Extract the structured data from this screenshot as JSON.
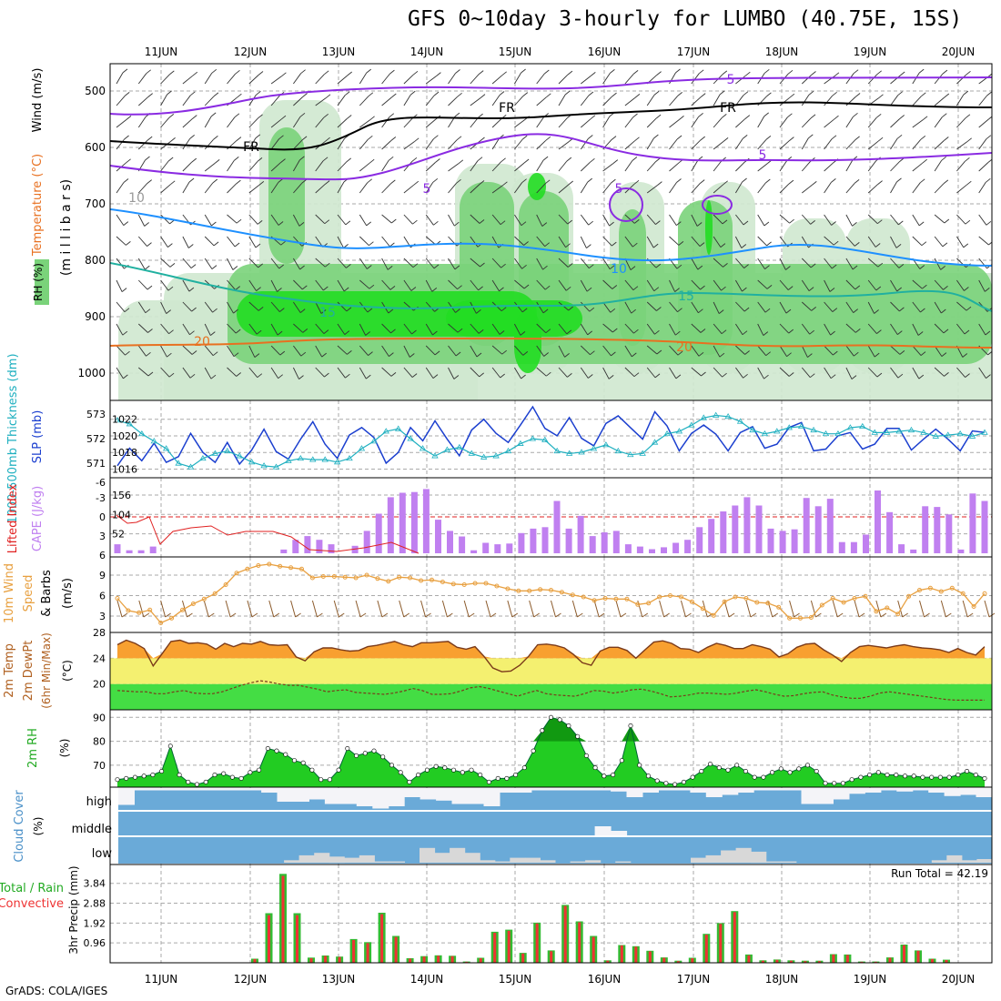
{
  "title": "GFS 0~10day 3-hourly for LUMBO (40.75E, 15S)",
  "credit": "GrADS: COLA/IGES",
  "days": [
    "11JUN",
    "12JUN",
    "13JUN",
    "14JUN",
    "15JUN",
    "16JUN",
    "17JUN",
    "18JUN",
    "19JUN",
    "20JUN"
  ],
  "colors": {
    "grid": "#aaaaaa",
    "purple": "#8a2be2",
    "orange": "#e87020",
    "teal": "#20b0a0",
    "blue": "#1e90ff",
    "green_light": "#cfe8cf",
    "green_mid": "#7ad37a",
    "green_bright": "#22dd22",
    "slp_line": "#1b3fcf",
    "thk_line": "#20b0c0",
    "cape_bar": "#c080f0",
    "li_line": "#e02020",
    "wind_line": "#e8a040",
    "barb": "#8b5a2b",
    "t_fill": "#f8a030",
    "band_yellow": "#f4f070",
    "band_green": "#44dd44",
    "rh_fill": "#22cc22",
    "rh_dark": "#119911",
    "cloud_blue": "#6aaad8",
    "cloud_white": "#f4f4f8",
    "cloud_grey": "#d8d8d8",
    "precip_green": "#33bb33",
    "precip_red": "#ee3333"
  },
  "panels": {
    "upper": {
      "label_rh": "RH (%)",
      "label_temp": "Temperature (°C)",
      "label_wind": "Wind (m/s)",
      "label_mb": "(m i l l i b a r s)",
      "ticks": [
        "500",
        "600",
        "700",
        "800",
        "900",
        "1000"
      ],
      "contour_labels": [
        "FR",
        "FR",
        "FR",
        "5",
        "5",
        "5",
        "5",
        "10",
        "15",
        "15",
        "20",
        "20",
        "10"
      ]
    },
    "slp": {
      "label_thk": "1000-500mb Thickness (dm)",
      "label_slp": "SLP (mb)",
      "ticks_left": [
        "573",
        "572",
        "571"
      ],
      "ticks_right": [
        "1022",
        "1020",
        "1018",
        "1016"
      ]
    },
    "cape": {
      "label_li": "Lifted Index",
      "label_cape": "CAPE (J/kg)",
      "ticks_left": [
        "-6",
        "-3",
        "0",
        "3",
        "6"
      ],
      "ticks_right": [
        "156",
        "104",
        "52"
      ]
    },
    "wind": {
      "label_a": "10m Wind",
      "label_b": "Speed",
      "label_c": "& Barbs",
      "label_units": "(m/s)",
      "ticks": [
        "9",
        "6",
        "3"
      ]
    },
    "temp": {
      "label_a": "2m Temp",
      "label_b": "2m DewPt",
      "label_c": "(6hr Min/Max)",
      "label_units": "(°C)",
      "ticks": [
        "28",
        "24",
        "20"
      ]
    },
    "rh": {
      "label": "2m RH",
      "label_units": "(%)",
      "ticks": [
        "90",
        "80",
        "70"
      ]
    },
    "cloud": {
      "label": "Cloud Cover",
      "label_units": "(%)",
      "levels": [
        "high",
        "middle",
        "low"
      ]
    },
    "precip": {
      "label_a": "Total / Rain",
      "label_b": "Convective",
      "label_c": "3hr Precip (mm)",
      "run_total": "Run Total = 42.19",
      "ticks": [
        "3.84",
        "2.88",
        "1.92",
        "0.96"
      ]
    }
  },
  "chart_data": [
    {
      "type": "line",
      "title": "1000-500mb Thickness (dm) / SLP (mb)",
      "series": [
        {
          "name": "SLP (mb)",
          "values": [
            1016.4,
            1018.5,
            1017.0,
            1019.1,
            1016.8,
            1017.5,
            1020.3,
            1018.0,
            1016.8,
            1019.2,
            1016.6,
            1018.3,
            1020.8,
            1018.1,
            1017.2,
            1019.6,
            1021.7,
            1019.0,
            1017.3,
            1020.1,
            1021.0,
            1019.8,
            1016.7,
            1018.0,
            1021.0,
            1019.4,
            1021.8,
            1019.6,
            1017.6,
            1020.7,
            1022.0,
            1020.3,
            1019.2,
            1021.3,
            1023.5,
            1020.9,
            1020.0,
            1022.2,
            1019.7,
            1018.8,
            1021.5,
            1022.4,
            1021.0,
            1019.6,
            1022.9,
            1021.2,
            1018.2,
            1020.3,
            1021.3,
            1020.2,
            1018.2,
            1020.4,
            1021.1,
            1018.5,
            1019.0,
            1021.0,
            1021.6,
            1018.2,
            1018.4,
            1020.0,
            1020.4,
            1018.4,
            1019.0,
            1020.9,
            1020.9,
            1018.3,
            1019.6,
            1020.8,
            1019.6,
            1018.2,
            1020.6,
            1020.4
          ]
        },
        {
          "name": "Thickness (dm)",
          "values": [
            572.75,
            572.6,
            572.2,
            571.9,
            571.6,
            571.0,
            570.85,
            571.2,
            571.4,
            571.5,
            571.3,
            571.05,
            570.9,
            570.85,
            571.1,
            571.2,
            571.15,
            571.15,
            571.05,
            571.2,
            571.6,
            571.9,
            572.3,
            572.4,
            572.0,
            571.6,
            571.3,
            571.55,
            571.65,
            571.4,
            571.25,
            571.3,
            571.5,
            571.8,
            572.0,
            571.95,
            571.5,
            571.4,
            571.45,
            571.6,
            571.75,
            571.5,
            571.35,
            571.4,
            571.85,
            572.2,
            572.3,
            572.55,
            572.85,
            572.95,
            572.9,
            572.7,
            572.35,
            572.2,
            572.3,
            572.45,
            572.5,
            572.35,
            572.2,
            572.2,
            572.45,
            572.5,
            572.25,
            572.25,
            572.3,
            572.35,
            572.25,
            572.1,
            572.15,
            572.2,
            572.1,
            572.25
          ]
        }
      ],
      "ylim_slp": [
        1015.5,
        1023.5
      ],
      "ylim_thickness": [
        570.6,
        573.3
      ]
    },
    {
      "type": "bar",
      "title": "CAPE (J/kg) / Lifted Index",
      "series": [
        {
          "name": "CAPE (J/kg)",
          "values": [
            24,
            8,
            8,
            18,
            0,
            0,
            0,
            0,
            0,
            0,
            0,
            0,
            0,
            0,
            10,
            36,
            46,
            36,
            24,
            0,
            20,
            60,
            106,
            150,
            162,
            164,
            172,
            90,
            60,
            45,
            8,
            28,
            24,
            26,
            54,
            66,
            70,
            140,
            66,
            100,
            46,
            56,
            60,
            24,
            18,
            11,
            16,
            28,
            36,
            70,
            92,
            112,
            128,
            150,
            128,
            66,
            60,
            64,
            148,
            126,
            146,
            30,
            30,
            50,
            168,
            110,
            24,
            10,
            126,
            124,
            104,
            10,
            160,
            140
          ],
          "note_hidden": false
        }
      ]
    },
    {
      "type": "line",
      "title": "10m Wind Speed (m/s)",
      "series": [
        {
          "name": "Speed",
          "values": [
            5.6,
            3.8,
            3.5,
            3.9,
            2.0,
            2.7,
            3.9,
            4.8,
            5.5,
            6.3,
            7.6,
            9.3,
            9.9,
            10.4,
            10.6,
            10.3,
            10.1,
            9.9,
            8.6,
            8.8,
            8.8,
            8.7,
            8.6,
            9.0,
            8.5,
            8.1,
            8.7,
            8.6,
            8.2,
            8.3,
            8.0,
            7.7,
            7.6,
            7.8,
            7.8,
            7.4,
            7.0,
            6.7,
            6.7,
            6.9,
            6.8,
            6.5,
            6.1,
            5.8,
            5.3,
            5.6,
            5.5,
            5.5,
            4.7,
            4.9,
            5.8,
            6.0,
            5.8,
            5.1,
            4.1,
            3.1,
            5.1,
            5.8,
            5.6,
            5.0,
            4.9,
            4.3,
            2.7,
            2.7,
            2.8,
            4.6,
            5.6,
            5.0,
            5.6,
            5.9,
            3.7,
            4.2,
            3.3,
            5.9,
            6.8,
            7.1,
            6.6,
            7.1,
            6.3,
            4.4,
            6.3
          ]
        }
      ],
      "ylim": [
        1,
        11
      ]
    },
    {
      "type": "area",
      "title": "2m Temp / 2m DewPt (°C)",
      "series": [
        {
          "name": "2m Temp",
          "values": [
            26.1,
            26.8,
            26.3,
            25.5,
            22.8,
            24.7,
            26.6,
            26.8,
            26.3,
            26.4,
            26.2,
            25.4,
            26.3,
            25.8,
            26.3,
            26.2,
            26.6,
            26.1,
            26.0,
            26.1,
            24.2,
            23.6,
            25.0,
            25.6,
            25.6,
            25.3,
            25.1,
            25.2,
            25.8,
            26.0,
            26.3,
            26.6,
            26.1,
            25.8,
            26.4,
            26.4,
            26.5,
            26.6,
            25.7,
            25.4,
            25.8,
            24.3,
            22.5,
            21.9,
            22.0,
            22.9,
            24.3,
            26.1,
            26.2,
            26.0,
            25.6,
            24.6,
            23.3,
            22.9,
            25.1,
            25.7,
            25.7,
            25.2,
            24.0,
            25.3,
            26.5,
            26.7,
            26.3,
            25.5,
            25.4,
            24.9,
            25.7,
            26.3,
            26.0,
            25.5,
            25.5,
            26.1,
            25.8,
            25.4,
            24.2,
            24.7,
            25.7,
            26.2,
            26.3,
            25.3,
            24.5,
            23.5,
            24.9,
            25.8,
            26.0,
            25.8,
            25.6,
            25.9,
            26.1,
            25.8,
            25.6,
            25.5,
            25.3,
            24.9,
            25.5,
            24.9,
            24.5,
            25.8
          ]
        },
        {
          "name": "2m DewPt",
          "values": [
            19.0,
            18.9,
            18.8,
            18.8,
            18.5,
            18.5,
            18.8,
            19.0,
            18.6,
            18.5,
            18.5,
            18.8,
            19.3,
            19.8,
            20.2,
            20.5,
            20.3,
            20.0,
            19.8,
            19.8,
            19.5,
            19.2,
            18.8,
            19.0,
            19.1,
            18.7,
            18.6,
            18.5,
            18.4,
            18.6,
            18.9,
            19.3,
            19.0,
            18.4,
            18.4,
            18.5,
            18.9,
            19.4,
            19.6,
            19.3,
            18.9,
            18.5,
            18.1,
            18.6,
            19.0,
            18.5,
            18.3,
            18.2,
            18.1,
            18.5,
            19.0,
            18.9,
            18.6,
            18.8,
            19.1,
            19.2,
            18.9,
            18.5,
            18.0,
            18.1,
            18.3,
            18.6,
            18.6,
            18.5,
            18.4,
            18.6,
            18.9,
            19.1,
            18.8,
            18.4,
            18.1,
            18.2,
            18.5,
            18.7,
            18.8,
            18.3,
            18.0,
            17.8,
            17.8,
            18.1,
            18.6,
            18.8,
            18.6,
            18.4,
            18.2,
            18.0,
            17.8,
            17.6,
            17.5,
            17.5,
            17.5,
            17.5
          ]
        }
      ],
      "ylim": [
        16,
        28
      ]
    },
    {
      "type": "area",
      "title": "2m RH (%)",
      "series": [
        {
          "name": "2m RH",
          "values": [
            64,
            64.5,
            65,
            65.5,
            66,
            67.5,
            78,
            66,
            63,
            62,
            63,
            66,
            66.5,
            65,
            64.5,
            67,
            68,
            77,
            76,
            74.5,
            72,
            71,
            68,
            64,
            64,
            68,
            77,
            74,
            75,
            76,
            73.5,
            70,
            67,
            63,
            66,
            68,
            69.5,
            69,
            68,
            67,
            68,
            66,
            63,
            64.5,
            64.5,
            66,
            69,
            76,
            84.5,
            90,
            89,
            86.5,
            82,
            74,
            69,
            65.5,
            66,
            72,
            86.5,
            70,
            65.5,
            63.5,
            62.5,
            62,
            63,
            65,
            67.5,
            70.5,
            69,
            68,
            70,
            67.5,
            65,
            65,
            67,
            68.5,
            67,
            68.5,
            70,
            67.5,
            62.5,
            62.5,
            62.5,
            64,
            65,
            66,
            67,
            66,
            66,
            65.5,
            65.5,
            65,
            65,
            65,
            65,
            66,
            67.5,
            66,
            64.5
          ]
        }
      ],
      "ylim": [
        62,
        92
      ]
    },
    {
      "type": "bar",
      "title": "3hr Precip (mm)",
      "series": [
        {
          "name": "Total / Rain",
          "values": [
            0.2,
            2.4,
            4.3,
            2.4,
            0.25,
            0.35,
            0.3,
            1.15,
            1.0,
            2.42,
            1.3,
            0.22,
            0.32,
            0.36,
            0.34,
            0.06,
            0.24,
            1.5,
            1.6,
            0.48,
            1.94,
            0.6,
            2.8,
            2.0,
            1.3,
            0.12,
            0.86,
            0.8,
            0.58,
            0.26,
            0.1,
            0.24,
            1.4,
            1.92,
            2.5,
            0.4,
            0.12,
            0.16,
            0.12,
            0.1,
            0.1,
            0.42,
            0.4,
            0.06,
            0.06,
            0.26,
            0.88,
            0.6,
            0.2,
            0.15
          ]
        },
        {
          "name": "Convective",
          "values": [
            0.18,
            2.3,
            4.2,
            2.3,
            0.22,
            0.33,
            0.28,
            1.1,
            0.95,
            2.35,
            1.25,
            0.2,
            0.3,
            0.34,
            0.32,
            0.05,
            0.22,
            1.45,
            1.55,
            0.45,
            1.9,
            0.56,
            2.75,
            1.96,
            1.25,
            0.1,
            0.84,
            0.78,
            0.55,
            0.24,
            0.08,
            0.22,
            1.36,
            1.88,
            2.45,
            0.36,
            0.1,
            0.14,
            0.1,
            0.08,
            0.08,
            0.4,
            0.38,
            0.05,
            0.05,
            0.24,
            0.85,
            0.58,
            0.18,
            0.13
          ]
        }
      ],
      "ylim": [
        0,
        4.4
      ]
    },
    {
      "type": "area",
      "title": "Cloud Cover (%)",
      "series": [
        {
          "name": "high",
          "values": [
            0.26,
            0.9,
            0.9,
            0.9,
            0.9,
            0.9,
            0.9,
            0.9,
            0.9,
            0.8,
            0.4,
            0.4,
            0.5,
            0.3,
            0.3,
            0.2,
            0.1,
            0.2,
            0.6,
            0.5,
            0.45,
            0.3,
            0.3,
            0.2,
            0.8,
            0.8,
            0.9,
            0.9,
            0.9,
            0.9,
            0.9,
            0.85,
            0.6,
            0.8,
            0.9,
            0.9,
            0.8,
            0.6,
            0.7,
            0.8,
            0.9,
            0.9,
            0.9,
            0.3,
            0.3,
            0.5,
            0.75,
            0.8,
            0.9,
            0.85,
            0.9,
            0.8,
            0.65,
            0.7,
            0.6
          ]
        },
        {
          "name": "middle",
          "values": [
            0,
            0,
            0,
            0,
            0,
            0,
            0,
            0,
            0,
            0,
            0,
            0,
            0,
            0,
            0,
            0,
            0,
            0,
            0,
            0,
            0,
            0,
            0,
            0,
            0,
            0,
            0,
            0,
            0,
            0,
            0.4,
            0.2,
            0,
            0,
            0,
            0,
            0,
            0,
            0,
            0,
            0,
            0,
            0,
            0,
            0,
            0,
            0,
            0,
            0,
            0,
            0,
            0,
            0,
            0,
            0
          ]
        },
        {
          "name": "low",
          "values": [
            0,
            0,
            0,
            0,
            0,
            0,
            0,
            0,
            0,
            0,
            0,
            0.1,
            0.3,
            0.4,
            0.25,
            0.2,
            0.3,
            0.05,
            0.05,
            0,
            0.6,
            0.4,
            0.6,
            0.4,
            0.1,
            0.05,
            0.2,
            0.2,
            0.1,
            0,
            0.05,
            0.1,
            0,
            0.05,
            0,
            0,
            0,
            0,
            0.2,
            0.3,
            0.5,
            0.6,
            0.45,
            0.05,
            0.05,
            0,
            0,
            0,
            0,
            0,
            0,
            0,
            0,
            0,
            0.1,
            0.3,
            0.1,
            0.15
          ]
        }
      ]
    }
  ]
}
